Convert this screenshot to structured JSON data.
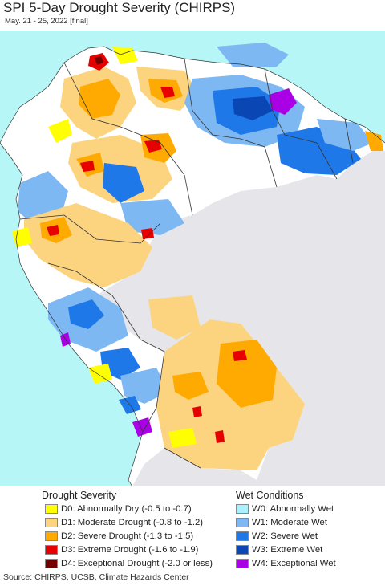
{
  "header": {
    "title": "SPI 5-Day Drought Severity (CHIRPS)",
    "subtitle": "May. 21 - 25, 2022 [final]"
  },
  "map": {
    "ocean_color": "#b6f6f6",
    "land_color": "#ffffff",
    "outside_color": "#e6e6ea",
    "border_color": "#333333"
  },
  "legend": {
    "drought": {
      "title": "Drought Severity",
      "items": [
        {
          "code": "D0",
          "label": "D0: Abnormally Dry (-0.5 to -0.7)",
          "color": "#ffff00"
        },
        {
          "code": "D1",
          "label": "D1: Moderate Drought (-0.8 to -1.2)",
          "color": "#fcd37f"
        },
        {
          "code": "D2",
          "label": "D2: Severe Drought (-1.3 to -1.5)",
          "color": "#ffaa00"
        },
        {
          "code": "D3",
          "label": "D3: Extreme Drought (-1.6 to -1.9)",
          "color": "#e60000"
        },
        {
          "code": "D4",
          "label": "D4: Exceptional Drought (-2.0 or less)",
          "color": "#730000"
        }
      ]
    },
    "wet": {
      "title": "Wet Conditions",
      "items": [
        {
          "code": "W0",
          "label": "W0: Abnormally Wet",
          "color": "#aaf0ff"
        },
        {
          "code": "W1",
          "label": "W1: Moderate Wet",
          "color": "#7eb8f2"
        },
        {
          "code": "W2",
          "label": "W2: Severe Wet",
          "color": "#1f78e8"
        },
        {
          "code": "W3",
          "label": "W3: Extreme Wet",
          "color": "#0a46b4"
        },
        {
          "code": "W4",
          "label": "W4: Exceptional Wet",
          "color": "#aa00e6"
        }
      ]
    }
  },
  "footer": {
    "source": "Source: CHIRPS, UCSB, Climate Hazards Center"
  }
}
